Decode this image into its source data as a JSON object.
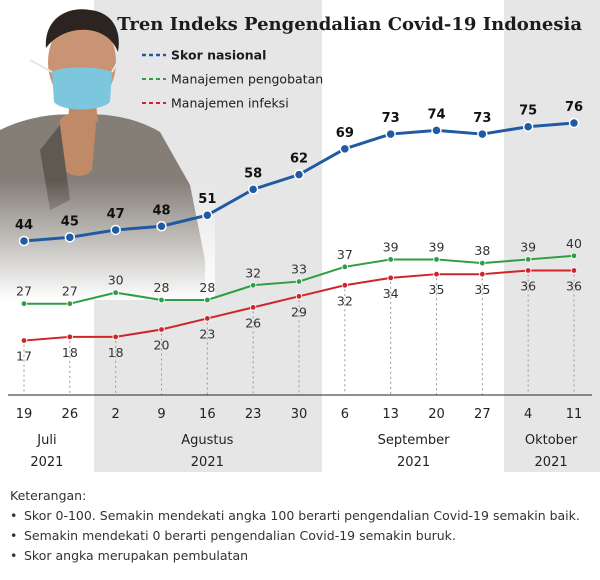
{
  "chart_data": {
    "type": "line",
    "title": "Tren Indeks Pengendalian Covid-19 Indonesia",
    "x": [
      "19",
      "26",
      "2",
      "9",
      "16",
      "23",
      "30",
      "6",
      "13",
      "20",
      "27",
      "4",
      "11"
    ],
    "months": [
      {
        "label": "Juli",
        "year": "2021"
      },
      {
        "label": "Agustus",
        "year": "2021"
      },
      {
        "label": "September",
        "year": "2021"
      },
      {
        "label": "Oktober",
        "year": "2021"
      }
    ],
    "series": [
      {
        "name": "Skor nasional",
        "color": "#1f5aa3",
        "values": [
          44,
          45,
          47,
          48,
          51,
          58,
          62,
          69,
          73,
          74,
          73,
          75,
          76
        ]
      },
      {
        "name": "Manajemen pengobatan",
        "color": "#2e9e44",
        "values": [
          27,
          27,
          30,
          28,
          28,
          32,
          33,
          37,
          39,
          39,
          38,
          39,
          40
        ]
      },
      {
        "name": "Manajemen infeksi",
        "color": "#d0242b",
        "values": [
          17,
          18,
          18,
          20,
          23,
          26,
          29,
          32,
          34,
          35,
          35,
          36,
          36
        ]
      }
    ],
    "grid": false,
    "legend": "top-right"
  },
  "notes": {
    "heading": "Keterangan:",
    "items": [
      "Skor 0-100. Semakin mendekati angka 100 berarti pengendalian Covid-19 semakin baik.",
      "Semakin mendekati 0 berarti pengendalian Covid-19 semakin buruk.",
      "Skor angka merupakan pembulatan"
    ]
  }
}
